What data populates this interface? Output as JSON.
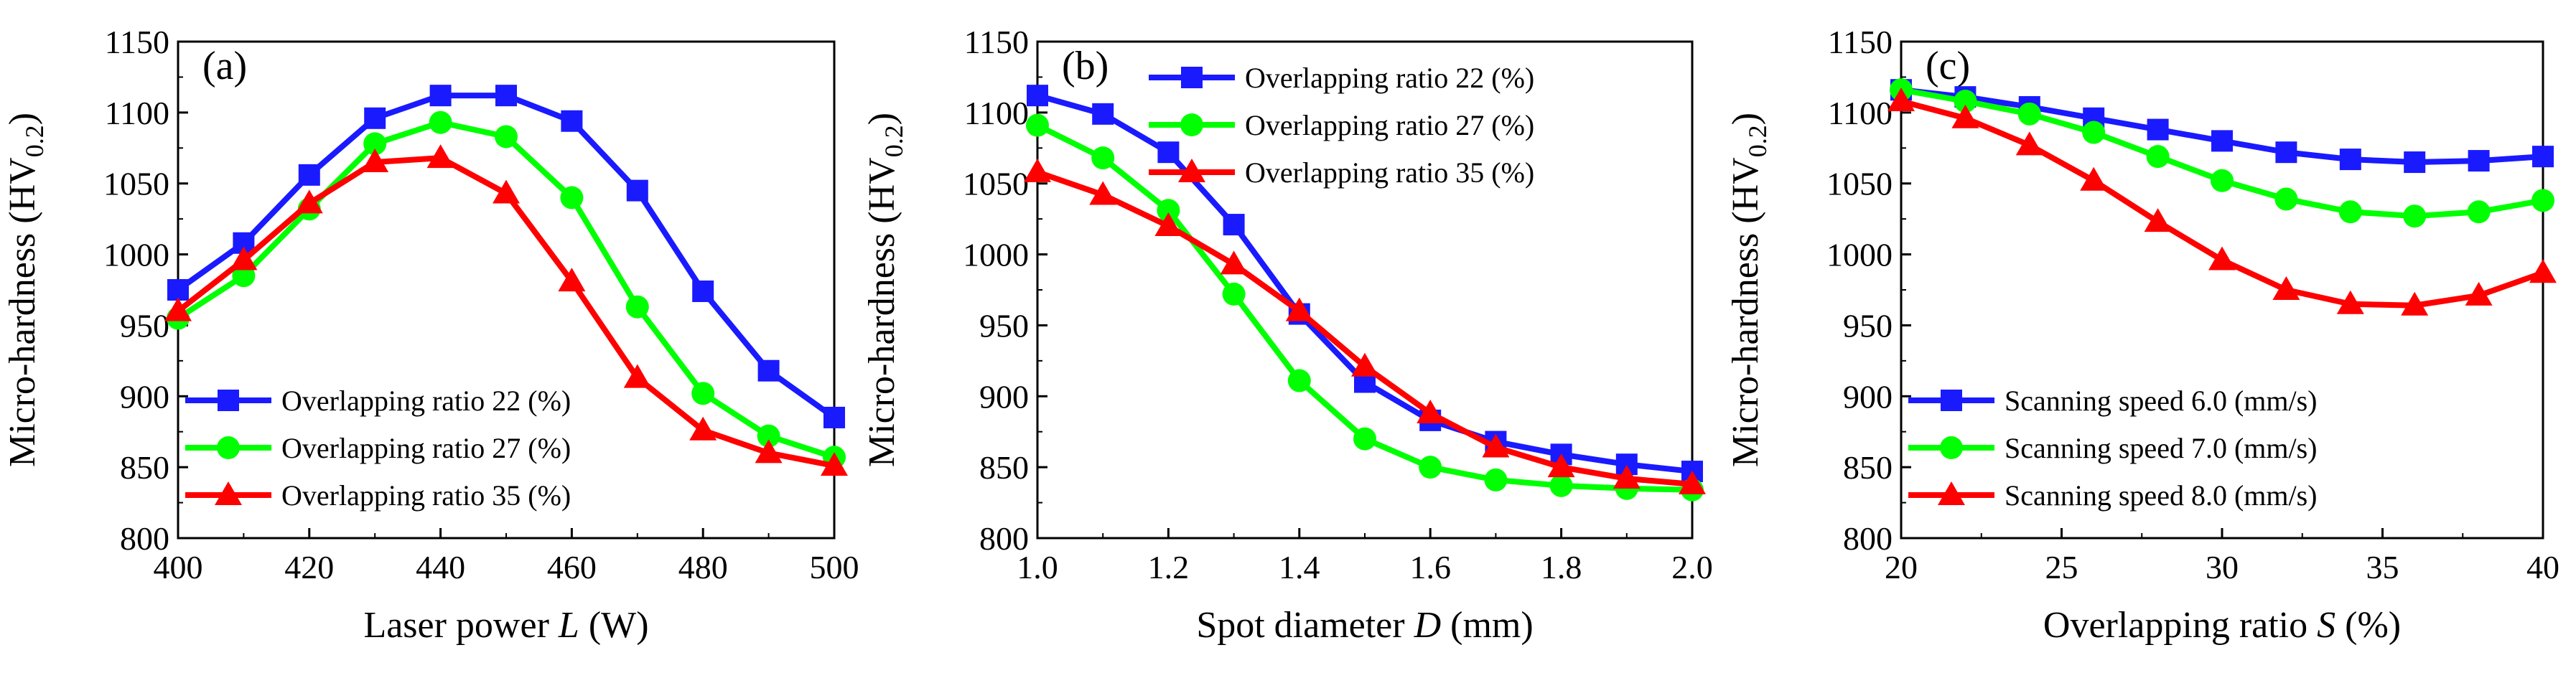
{
  "chart_data": [
    {
      "type": "line",
      "panel_label": "(a)",
      "xlabel": {
        "prefix": "Laser power ",
        "var": "L",
        "suffix": " (W)"
      },
      "ylabel": {
        "main": "Micro-hardness (HV",
        "sub": "0.2",
        "close": ")"
      },
      "xlim": [
        400,
        500
      ],
      "ylim": [
        800,
        1150
      ],
      "xticks": [
        "400",
        "420",
        "440",
        "460",
        "480",
        "500"
      ],
      "yticks": [
        "800",
        "850",
        "900",
        "950",
        "1000",
        "1050",
        "1100",
        "1150"
      ],
      "x": [
        400,
        410,
        420,
        430,
        440,
        450,
        460,
        470,
        480,
        490,
        500
      ],
      "legend_position": "bottom-left",
      "series": [
        {
          "name": "Overlapping ratio 22 (%)",
          "color": "#1a1aff",
          "marker": "square",
          "values": [
            975,
            1008,
            1056,
            1096,
            1112,
            1112,
            1094,
            1045,
            974,
            918,
            885
          ]
        },
        {
          "name": "Overlapping ratio 27 (%)",
          "color": "#00ff00",
          "marker": "circle",
          "values": [
            955,
            985,
            1032,
            1078,
            1093,
            1083,
            1040,
            963,
            902,
            872,
            857
          ]
        },
        {
          "name": "Overlapping ratio 35 (%)",
          "color": "#ff0000",
          "marker": "triangle",
          "values": [
            960,
            996,
            1036,
            1065,
            1068,
            1043,
            981,
            913,
            876,
            860,
            851
          ]
        }
      ]
    },
    {
      "type": "line",
      "panel_label": "(b)",
      "xlabel": {
        "prefix": "Spot diameter ",
        "var": "D",
        "suffix": " (mm)"
      },
      "ylabel": {
        "main": "Micro-hardness (HV",
        "sub": "0.2",
        "close": ")"
      },
      "xlim": [
        1.0,
        2.0
      ],
      "ylim": [
        800,
        1150
      ],
      "xticks": [
        "1.0",
        "1.2",
        "1.4",
        "1.6",
        "1.8",
        "2.0"
      ],
      "yticks": [
        "800",
        "850",
        "900",
        "950",
        "1000",
        "1050",
        "1100",
        "1150"
      ],
      "x": [
        1.0,
        1.1,
        1.2,
        1.3,
        1.4,
        1.5,
        1.6,
        1.7,
        1.8,
        1.9,
        2.0
      ],
      "legend_position": "top-right",
      "series": [
        {
          "name": "Overlapping ratio 22 (%)",
          "color": "#1a1aff",
          "marker": "square",
          "values": [
            1112,
            1099,
            1072,
            1021,
            958,
            910,
            883,
            868,
            859,
            852,
            847
          ]
        },
        {
          "name": "Overlapping ratio 27 (%)",
          "color": "#00ff00",
          "marker": "circle",
          "values": [
            1091,
            1068,
            1031,
            972,
            911,
            870,
            850,
            841,
            837,
            835,
            834
          ]
        },
        {
          "name": "Overlapping ratio 35 (%)",
          "color": "#ff0000",
          "marker": "triangle",
          "values": [
            1058,
            1042,
            1020,
            993,
            960,
            921,
            888,
            864,
            850,
            842,
            838
          ]
        }
      ]
    },
    {
      "type": "line",
      "panel_label": "(c)",
      "xlabel": {
        "prefix": "Overlapping ratio ",
        "var": "S",
        "suffix": " (%)"
      },
      "ylabel": {
        "main": "Micro-hardness (HV",
        "sub": "0.2",
        "close": ")"
      },
      "xlim": [
        20,
        40
      ],
      "ylim": [
        800,
        1150
      ],
      "xticks": [
        "20",
        "25",
        "30",
        "35",
        "40"
      ],
      "yticks": [
        "800",
        "850",
        "900",
        "950",
        "1000",
        "1050",
        "1100",
        "1150"
      ],
      "x": [
        20,
        22,
        24,
        26,
        28,
        30,
        32,
        34,
        36,
        38,
        40
      ],
      "legend_position": "bottom-left",
      "series": [
        {
          "name": "Scanning speed 6.0 (mm/s)",
          "color": "#1a1aff",
          "marker": "square",
          "values": [
            1116,
            1111,
            1104,
            1096,
            1088,
            1080,
            1072,
            1067,
            1065,
            1066,
            1069
          ]
        },
        {
          "name": "Scanning speed 7.0 (mm/s)",
          "color": "#00ff00",
          "marker": "circle",
          "values": [
            1116,
            1108,
            1099,
            1086,
            1069,
            1052,
            1039,
            1030,
            1027,
            1030,
            1038
          ]
        },
        {
          "name": "Scanning speed 8.0 (mm/s)",
          "color": "#ff0000",
          "marker": "triangle",
          "values": [
            1108,
            1096,
            1077,
            1052,
            1023,
            996,
            975,
            965,
            964,
            971,
            987
          ]
        }
      ]
    }
  ]
}
